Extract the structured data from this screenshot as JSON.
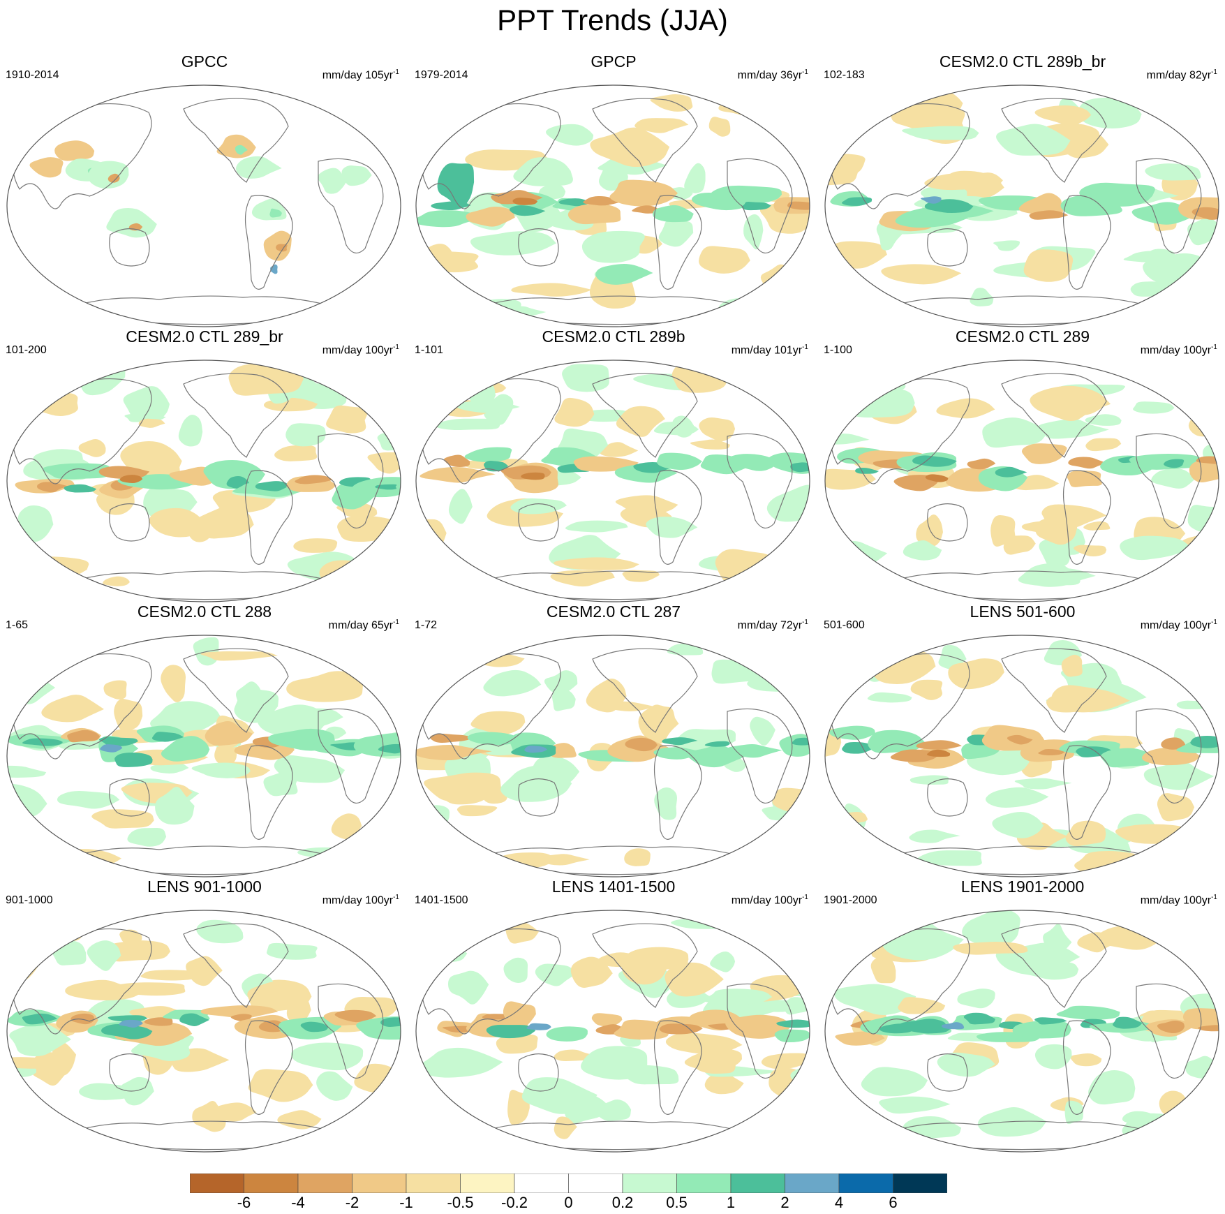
{
  "title": "PPT Trends (JJA)",
  "panels": [
    {
      "title": "GPCC",
      "period": "1910-2014",
      "units": "mm/day 105yr",
      "exp": "-1",
      "pattern": "obs-land"
    },
    {
      "title": "GPCP",
      "period": "1979-2014",
      "units": "mm/day 36yr",
      "exp": "-1",
      "pattern": "gpcp"
    },
    {
      "title": "CESM2.0 CTL 289b_br",
      "period": "102-183",
      "units": "mm/day 82yr",
      "exp": "-1",
      "pattern": "model"
    },
    {
      "title": "CESM2.0 CTL 289_br",
      "period": "101-200",
      "units": "mm/day 100yr",
      "exp": "-1",
      "pattern": "model"
    },
    {
      "title": "CESM2.0 CTL 289b",
      "period": "1-101",
      "units": "mm/day 101yr",
      "exp": "-1",
      "pattern": "model"
    },
    {
      "title": "CESM2.0 CTL 289",
      "period": "1-100",
      "units": "mm/day 100yr",
      "exp": "-1",
      "pattern": "model"
    },
    {
      "title": "CESM2.0 CTL 288",
      "period": "1-65",
      "units": "mm/day 65yr",
      "exp": "-1",
      "pattern": "model"
    },
    {
      "title": "CESM2.0 CTL 287",
      "period": "1-72",
      "units": "mm/day 72yr",
      "exp": "-1",
      "pattern": "model"
    },
    {
      "title": "LENS 501-600",
      "period": "501-600",
      "units": "mm/day 100yr",
      "exp": "-1",
      "pattern": "model"
    },
    {
      "title": "LENS 901-1000",
      "period": "901-1000",
      "units": "mm/day 100yr",
      "exp": "-1",
      "pattern": "model"
    },
    {
      "title": "LENS 1401-1500",
      "period": "1401-1500",
      "units": "mm/day 100yr",
      "exp": "-1",
      "pattern": "model"
    },
    {
      "title": "LENS 1901-2000",
      "period": "1901-2000",
      "units": "mm/day 100yr",
      "exp": "-1",
      "pattern": "model"
    }
  ],
  "colorbar": {
    "colors": [
      "#b5652a",
      "#cc853f",
      "#dfa462",
      "#f0c987",
      "#f6e0a2",
      "#fdf4c2",
      "#ffffff",
      "#ffffff",
      "#c7f9d1",
      "#93eab6",
      "#4cbf9a",
      "#6aa7c8",
      "#0b6aaa",
      "#003856"
    ],
    "labels": [
      "-6",
      "-4",
      "-2",
      "-1",
      "-0.5",
      "-0.2",
      "0",
      "0.2",
      "0.5",
      "1",
      "2",
      "4",
      "6"
    ]
  },
  "palette": {
    "dry3": "#cc853f",
    "dry2": "#dfa462",
    "dry1": "#f0c987",
    "dry0": "#f6e0a2",
    "wet0": "#c7f9d1",
    "wet1": "#93eab6",
    "wet2": "#4cbf9a",
    "wet3": "#6aa7c8",
    "wet4": "#0b6aaa",
    "outline": "#555555",
    "coast": "#777777"
  }
}
